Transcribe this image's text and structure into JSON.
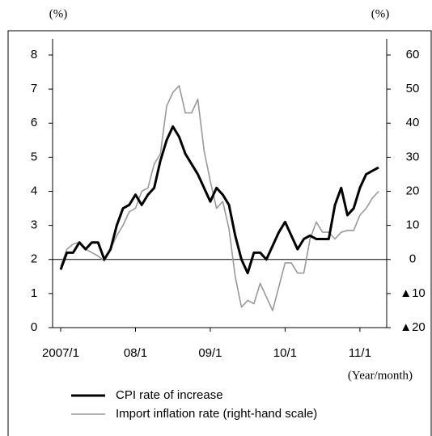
{
  "chart_data": {
    "type": "line",
    "left_unit": "(%)",
    "right_unit": "(%)",
    "x_label": "(Year/month)",
    "categories": [
      "2007/1",
      null,
      null,
      null,
      null,
      null,
      null,
      null,
      null,
      null,
      null,
      null,
      "08/1",
      null,
      null,
      null,
      null,
      null,
      null,
      null,
      null,
      null,
      null,
      null,
      "09/1",
      null,
      null,
      null,
      null,
      null,
      null,
      null,
      null,
      null,
      null,
      null,
      "10/1",
      null,
      null,
      null,
      null,
      null,
      null,
      null,
      null,
      null,
      null,
      null,
      "11/1",
      null,
      null,
      null
    ],
    "series": [
      {
        "name": "CPI rate of increase",
        "color": "#000000",
        "values": [
          1.7,
          2.2,
          2.2,
          2.5,
          2.3,
          2.5,
          2.5,
          2.0,
          2.3,
          3.0,
          3.5,
          3.6,
          3.9,
          3.6,
          3.9,
          4.1,
          4.9,
          5.5,
          5.9,
          5.6,
          5.1,
          4.8,
          4.5,
          4.1,
          3.7,
          4.1,
          3.9,
          3.6,
          2.7,
          2.0,
          1.6,
          2.2,
          2.2,
          2.0,
          2.4,
          2.8,
          3.1,
          2.7,
          2.3,
          2.6,
          2.7,
          2.6,
          2.6,
          2.6,
          3.6,
          4.1,
          3.3,
          3.5,
          4.1,
          4.5,
          4.6,
          4.7
        ]
      },
      {
        "name": "Import inflation rate (right-hand scale)",
        "color": "#999999",
        "axis": "y2",
        "values": [
          -2,
          3,
          4.5,
          5,
          3,
          2,
          1,
          -0.5,
          3,
          7,
          10,
          14,
          15,
          20,
          21,
          28,
          31,
          45,
          49,
          51,
          43,
          43,
          47,
          32,
          23,
          15,
          17,
          9,
          -5,
          -14,
          -12,
          -13,
          -7,
          -11,
          -15,
          -8,
          -1,
          -1,
          -4,
          -4,
          6,
          11,
          8,
          8,
          6,
          8,
          8.5,
          8.5,
          13,
          15,
          18,
          20
        ]
      }
    ],
    "ylim": [
      0,
      8
    ],
    "yticks": [
      0,
      1,
      2,
      3,
      4,
      5,
      6,
      7,
      8
    ],
    "y2lim": [
      -20,
      60
    ],
    "y2ticks": [
      {
        "value": -20,
        "label": "▲20"
      },
      {
        "value": -10,
        "label": "▲10"
      },
      0,
      10,
      20,
      30,
      40,
      50,
      60
    ]
  }
}
